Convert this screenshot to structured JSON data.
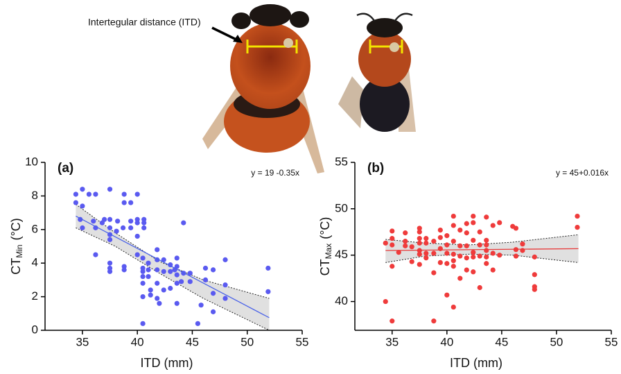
{
  "figure": {
    "annotation": "Intertegular distance (ITD)"
  },
  "chart_data": [
    {
      "type": "scatter",
      "panel_label": "(a)",
      "equation": "y = 19 -0.35x",
      "x_label": "ITD (mm)",
      "y_label": {
        "main": "CT",
        "sub": "Min",
        "unit": "(°C)"
      },
      "xlim": [
        31.6,
        55
      ],
      "ylim": [
        0,
        10
      ],
      "xticks": [
        35,
        40,
        45,
        50,
        55
      ],
      "yticks": [
        0,
        2,
        4,
        6,
        8,
        10
      ],
      "color": "#5a5af0",
      "line_color": "#4a62e8",
      "x": [
        34.4,
        34.4,
        35,
        35,
        34.8,
        35,
        35.6,
        36.2,
        36,
        36.2,
        36.2,
        37,
        36.8,
        37.5,
        37.5,
        37.5,
        37.5,
        37.5,
        37.5,
        37.5,
        37.5,
        38.2,
        38.1,
        38.8,
        38.8,
        38.7,
        38.8,
        38.8,
        39.4,
        39.4,
        39.4,
        40,
        40,
        40,
        40,
        40,
        40.6,
        40.6,
        40.6,
        40.5,
        40.5,
        40.5,
        40.5,
        40.5,
        40.5,
        40.5,
        41,
        41,
        41,
        41.2,
        41.2,
        41.8,
        41.8,
        41.8,
        41.8,
        41.8,
        42,
        42.4,
        42.4,
        42.4,
        43,
        43,
        43,
        43.4,
        43.6,
        43.6,
        43.6,
        43.6,
        43.6,
        44,
        44.2,
        44.2,
        44.8,
        44.8,
        45.5,
        45.8,
        46.2,
        46.2,
        46.9,
        46.9,
        46.9,
        48,
        48,
        48,
        51.9,
        51.9
      ],
      "values": [
        8.1,
        7.6,
        8.4,
        7.4,
        6.6,
        6.1,
        8.1,
        8.1,
        6.5,
        6.1,
        4.5,
        6.6,
        6.4,
        8.4,
        6.6,
        6.1,
        5.7,
        5.4,
        4,
        3.7,
        3.5,
        6.5,
        5.9,
        8.1,
        7.6,
        6.1,
        3.8,
        3.6,
        7.6,
        6.5,
        6.1,
        8.1,
        6.6,
        6.4,
        5.6,
        4.5,
        6.6,
        6.4,
        6.1,
        4.3,
        3.7,
        3.5,
        3.2,
        2.8,
        2,
        0.4,
        4,
        3.6,
        3.2,
        2.4,
        2.1,
        4.8,
        4.2,
        3.6,
        2.8,
        1.9,
        1.6,
        4.2,
        3.5,
        2.4,
        3.9,
        3.5,
        2.5,
        3.6,
        4.3,
        3.8,
        3.3,
        2.8,
        1.6,
        2.9,
        6.4,
        3.4,
        3.4,
        2.9,
        0.4,
        1.5,
        3.7,
        3,
        3.6,
        2.2,
        1.1,
        4.2,
        2.7,
        1.9,
        3.7,
        2.3
      ],
      "fit": {
        "x": [
          34.4,
          52
        ],
        "values": [
          6.8,
          0.75
        ]
      },
      "ci": {
        "x": [
          34.4,
          38,
          42,
          46,
          52
        ],
        "upper": [
          7.5,
          5.8,
          4.1,
          3.0,
          1.9
        ],
        "lower": [
          6.1,
          5.0,
          3.4,
          1.9,
          0
        ]
      }
    },
    {
      "type": "scatter",
      "panel_label": "(b)",
      "equation": "y = 45+0.016x",
      "x_label": "ITD (mm)",
      "y_label": {
        "main": "CT",
        "sub": "Max",
        "unit": "(°C)"
      },
      "xlim": [
        31.6,
        55
      ],
      "ylim": [
        36.9,
        55
      ],
      "xticks": [
        35,
        40,
        45,
        50,
        55
      ],
      "yticks": [
        40,
        45,
        50,
        55
      ],
      "color": "#ef3b3b",
      "line_color": "#e83a3a",
      "x": [
        34.4,
        34.4,
        35,
        35,
        35,
        35,
        35,
        35.6,
        36.2,
        36.2,
        36.2,
        36.8,
        36.8,
        37.5,
        37.5,
        37.5,
        37.5,
        37.5,
        37.5,
        37.5,
        38.1,
        38.1,
        38.1,
        38.1,
        38.8,
        38.8,
        38.8,
        38.8,
        39.4,
        39.4,
        39.4,
        39.4,
        40,
        40,
        40,
        40,
        40,
        40.6,
        40.6,
        40.6,
        40.6,
        40.6,
        40.6,
        40.6,
        41.2,
        41.2,
        41.2,
        41.2,
        41.8,
        41.8,
        41.8,
        41.8,
        41.8,
        42.4,
        42.4,
        42.4,
        42.4,
        42.4,
        42.4,
        43,
        43,
        43,
        43,
        43.6,
        43.6,
        43.6,
        43.6,
        43.6,
        43.6,
        44.2,
        44.2,
        44.2,
        44.8,
        44.8,
        46,
        46.3,
        46.3,
        46.3,
        46.9,
        46.9,
        48,
        48,
        48,
        48,
        51.9,
        51.9
      ],
      "values": [
        46.3,
        40,
        47.6,
        46.8,
        46.1,
        43.8,
        37.9,
        45.3,
        47.4,
        46.5,
        46,
        45.9,
        44.3,
        47.9,
        47.5,
        46.8,
        46.3,
        45.5,
        45.1,
        44,
        46.8,
        46.3,
        45.2,
        44.7,
        46.5,
        45.2,
        43.1,
        37.9,
        47.7,
        46.9,
        45.7,
        44.2,
        47.1,
        46.1,
        45.2,
        44.1,
        40.7,
        49.2,
        48.2,
        46.5,
        45.1,
        44.4,
        43.8,
        39.4,
        47.7,
        46,
        44.9,
        42.5,
        48.4,
        47.4,
        46,
        44.7,
        43.4,
        49.2,
        48.5,
        46.6,
        45.3,
        44.8,
        43.2,
        47.5,
        46.1,
        44.9,
        41.5,
        49.1,
        46.6,
        46.1,
        45.5,
        44.8,
        44.1,
        48.2,
        45.2,
        43.4,
        48.5,
        45,
        48.1,
        47.9,
        45.6,
        44.9,
        46.2,
        45.5,
        44.8,
        42.9,
        41.6,
        41.3,
        49.2,
        48
      ],
      "fit": {
        "x": [
          34.4,
          52
        ],
        "values": [
          45.5,
          45.7
        ]
      },
      "ci": {
        "x": [
          34.4,
          38,
          42,
          46,
          52
        ],
        "upper": [
          46.7,
          46.3,
          46.1,
          46.4,
          47.2
        ],
        "lower": [
          44.2,
          44.9,
          45.1,
          45.0,
          44.2
        ]
      }
    }
  ]
}
